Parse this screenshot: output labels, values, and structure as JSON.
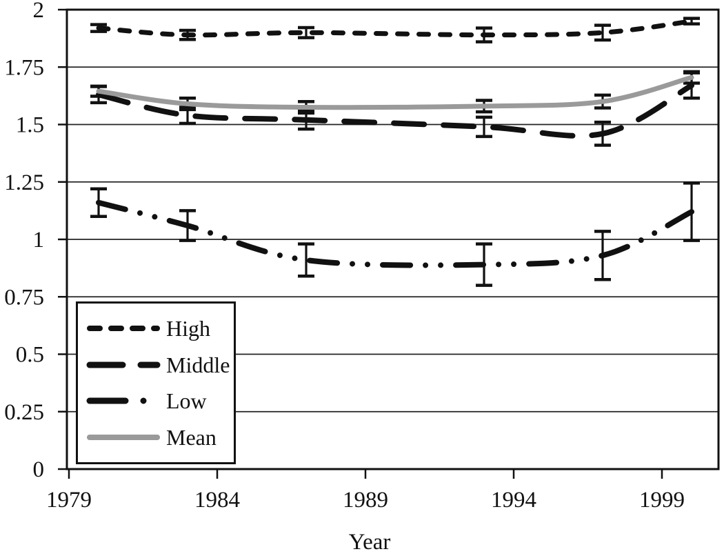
{
  "chart_data": {
    "type": "line",
    "title": "",
    "xlabel": "Year",
    "ylabel": "",
    "grid": true,
    "legend_position": "lower-left-inside",
    "xlim": [
      1979,
      2000.9
    ],
    "ylim": [
      0,
      2
    ],
    "x_ticks": [
      {
        "v": 1979,
        "label": "1979"
      },
      {
        "v": 1984,
        "label": "1984"
      },
      {
        "v": 1989,
        "label": "1989"
      },
      {
        "v": 1994,
        "label": "1994"
      },
      {
        "v": 1999,
        "label": "1999"
      }
    ],
    "y_ticks": [
      {
        "v": 2,
        "label": "2"
      },
      {
        "v": 1.75,
        "label": "1.75"
      },
      {
        "v": 1.5,
        "label": "1.5"
      },
      {
        "v": 1.25,
        "label": "1.25"
      },
      {
        "v": 1,
        "label": "1"
      },
      {
        "v": 0.75,
        "label": "0.75"
      },
      {
        "v": 0.5,
        "label": "0.5"
      },
      {
        "v": 0.25,
        "label": "0.25"
      },
      {
        "v": 0,
        "label": "0"
      }
    ],
    "x": [
      1980,
      1983,
      1987,
      1993,
      1997,
      2000
    ],
    "series": [
      {
        "name": "High",
        "color": "#111111",
        "style": "short-dash",
        "values": [
          1.92,
          1.89,
          1.9,
          1.89,
          1.9,
          1.95
        ],
        "errors": [
          0.015,
          0.02,
          0.022,
          0.03,
          0.032,
          0.012
        ]
      },
      {
        "name": "Middle",
        "color": "#111111",
        "style": "long-dash",
        "values": [
          1.63,
          1.54,
          1.52,
          1.49,
          1.46,
          1.67
        ],
        "errors": [
          0.035,
          0.035,
          0.04,
          0.042,
          0.05,
          0.055
        ]
      },
      {
        "name": "Low",
        "color": "#111111",
        "style": "dash-dot-dot",
        "values": [
          1.16,
          1.06,
          0.91,
          0.89,
          0.93,
          1.12
        ],
        "errors": [
          0.06,
          0.065,
          0.07,
          0.09,
          0.105,
          0.125
        ]
      },
      {
        "name": "Mean",
        "color": "#9a9a9a",
        "style": "solid",
        "values": [
          1.645,
          1.59,
          1.575,
          1.58,
          1.6,
          1.705
        ],
        "errors": [
          0.022,
          0.025,
          0.025,
          0.025,
          0.028,
          0.025
        ]
      }
    ]
  }
}
